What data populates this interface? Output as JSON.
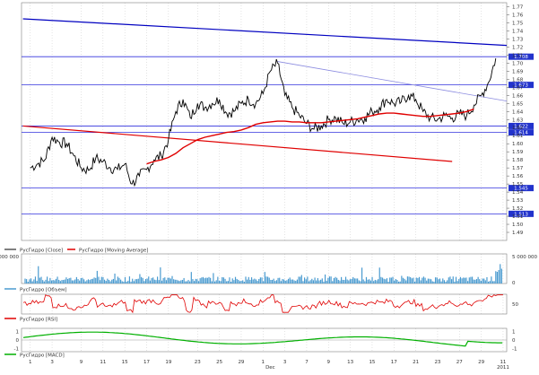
{
  "colors": {
    "background": "#ffffff",
    "price_line": "#000000",
    "moving_average": "#e00000",
    "trendline": "#0000c0",
    "trendline_light": "#8c8ce0",
    "level_line": "#3333dd",
    "volume": "#4a9bd0",
    "rsi": "#e00000",
    "macd": "#00b000",
    "level_label_bg": "#2233cc",
    "grid": "#c8c8c8",
    "frame": "#808080"
  },
  "legends": {
    "price": "РусГидро [Close]",
    "ma": "РусГидро [Moving Average]",
    "volume": "РусГидро [Объем]",
    "rsi": "РусГидро [RSI]",
    "macd": "РусГидро [MACD]"
  },
  "chart_data": [
    {
      "type": "line",
      "panel": "price",
      "ylim": [
        1.48,
        1.775
      ],
      "yticks": [
        "1.77",
        "1.76",
        "1.75",
        "1.74",
        "1.73",
        "1.72",
        "1.71",
        "1.70",
        "1.69",
        "1.68",
        "1.67",
        "1.66",
        "1.65",
        "1.64",
        "1.63",
        "1.62",
        "1.61",
        "1.60",
        "1.59",
        "1.58",
        "1.57",
        "1.56",
        "1.55",
        "1.54",
        "1.53",
        "1.52",
        "1.51",
        "1.50",
        "1.49"
      ],
      "xticks": [
        {
          "i": 0,
          "label": "1"
        },
        {
          "i": 3,
          "label": "3"
        },
        {
          "i": 7,
          "label": "9"
        },
        {
          "i": 10,
          "label": "11"
        },
        {
          "i": 13,
          "label": "15"
        },
        {
          "i": 16,
          "label": "17"
        },
        {
          "i": 19,
          "label": "19"
        },
        {
          "i": 23,
          "label": "23"
        },
        {
          "i": 26,
          "label": "25"
        },
        {
          "i": 29,
          "label": "29"
        },
        {
          "i": 32,
          "label": "1"
        },
        {
          "i": 35,
          "label": "3"
        },
        {
          "i": 38,
          "label": "7"
        },
        {
          "i": 41,
          "label": "9"
        },
        {
          "i": 44,
          "label": "13"
        },
        {
          "i": 47,
          "label": "15"
        },
        {
          "i": 50,
          "label": "17"
        },
        {
          "i": 53,
          "label": "21"
        },
        {
          "i": 56,
          "label": "23"
        },
        {
          "i": 59,
          "label": "27"
        },
        {
          "i": 62,
          "label": "29"
        },
        {
          "i": 65,
          "label": "11"
        }
      ],
      "month_labels": [
        {
          "i": 33,
          "label": "Dec"
        },
        {
          "i": 65,
          "label": "2011"
        }
      ],
      "series": [
        {
          "key": "close",
          "values": [
            1.57,
            1.575,
            1.58,
            1.608,
            1.602,
            1.6,
            1.585,
            1.57,
            1.567,
            1.582,
            1.578,
            1.57,
            1.568,
            1.575,
            1.55,
            1.56,
            1.568,
            1.58,
            1.585,
            1.605,
            1.64,
            1.655,
            1.632,
            1.65,
            1.645,
            1.65,
            1.655,
            1.638,
            1.64,
            1.65,
            1.655,
            1.65,
            1.662,
            1.69,
            1.7,
            1.66,
            1.645,
            1.635,
            1.625,
            1.618,
            1.622,
            1.63,
            1.632,
            1.625,
            1.627,
            1.63,
            1.632,
            1.64,
            1.645,
            1.655,
            1.65,
            1.652,
            1.66,
            1.655,
            1.64,
            1.632,
            1.63,
            1.635,
            1.632,
            1.637,
            1.635,
            1.648,
            1.66,
            1.676,
            1.706
          ]
        },
        {
          "key": "moving_average",
          "values": [
            null,
            null,
            null,
            null,
            null,
            null,
            null,
            null,
            null,
            null,
            null,
            null,
            null,
            null,
            null,
            null,
            1.575,
            1.578,
            1.58,
            1.583,
            1.588,
            1.595,
            1.6,
            1.605,
            1.608,
            1.61,
            1.612,
            1.614,
            1.615,
            1.617,
            1.62,
            1.624,
            1.626,
            1.627,
            1.628,
            1.628,
            1.627,
            1.627,
            1.626,
            1.626,
            1.626,
            1.627,
            1.628,
            1.629,
            1.63,
            1.631,
            1.633,
            1.635,
            1.637,
            1.638,
            1.638,
            1.637,
            1.636,
            1.635,
            1.634,
            1.634,
            1.635,
            1.636,
            1.637,
            1.638,
            1.64,
            1.643
          ]
        }
      ],
      "trendlines": [
        {
          "from": {
            "i": -1,
            "y": 1.755
          },
          "to": {
            "i": 67.5,
            "y": 1.722
          },
          "style": "dark"
        },
        {
          "from": {
            "i": -1,
            "y": 1.622
          },
          "to": {
            "i": 58,
            "y": 1.578
          },
          "style": "ma"
        },
        {
          "from": {
            "i": 34,
            "y": 1.702
          },
          "to": {
            "i": 67.5,
            "y": 1.653
          },
          "style": "light"
        }
      ],
      "levels": [
        {
          "y": 1.708,
          "label": "1.708"
        },
        {
          "y": 1.673,
          "label": "1.673"
        },
        {
          "y": 1.622,
          "label": "1.622"
        },
        {
          "y": 1.614,
          "label": "1.614"
        },
        {
          "y": 1.545,
          "label": "1.545"
        },
        {
          "y": 1.513,
          "label": "1.513"
        }
      ]
    },
    {
      "type": "bar",
      "panel": "volume",
      "ylim": [
        0,
        5000000
      ],
      "ytick_left": "000 000",
      "ytick_right": "5 000 000",
      "bottom_label": "0"
    },
    {
      "type": "line",
      "panel": "rsi",
      "ylim": [
        20,
        80
      ],
      "yticks": [
        "50"
      ]
    },
    {
      "type": "line",
      "panel": "macd",
      "ylim": [
        -1.4,
        1.4
      ],
      "yticks_left": [
        "1",
        "0",
        "-1"
      ],
      "yticks_right": [
        "1",
        "0",
        "-1"
      ]
    }
  ]
}
